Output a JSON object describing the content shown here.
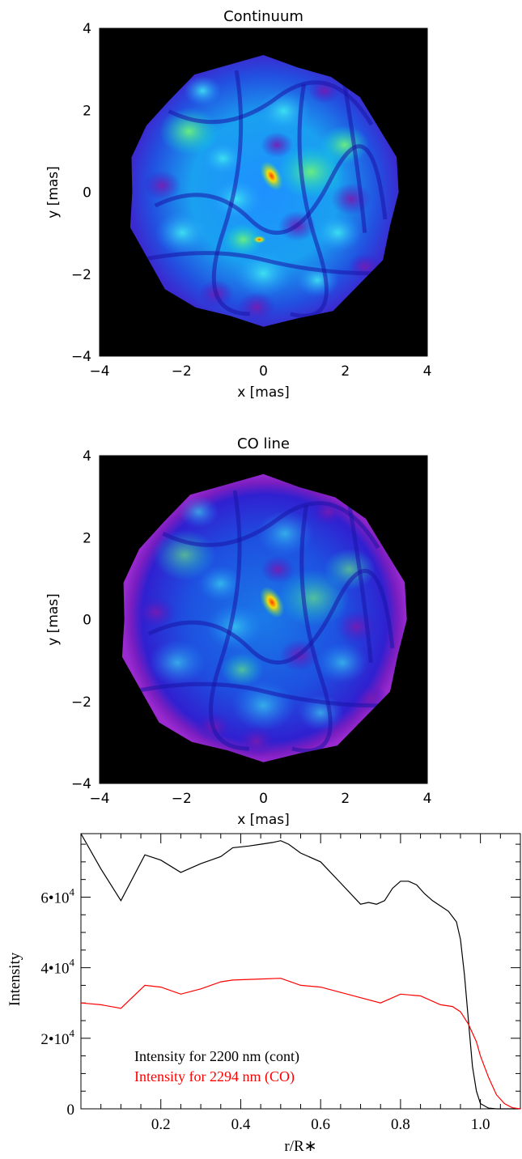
{
  "chart_data": [
    {
      "type": "heatmap",
      "title": "Continuum",
      "xlabel": "x [mas]",
      "ylabel": "y [mas]",
      "xlim": [
        -4,
        4
      ],
      "ylim": [
        -4,
        4
      ],
      "xticks": [
        "−4",
        "−2",
        "0",
        "2",
        "4"
      ],
      "yticks": [
        "4",
        "2",
        "0",
        "−2",
        "−4"
      ],
      "stellar_radius_mas": 3.3,
      "colormap": [
        "#000000",
        "#5a1a9c",
        "#1f1fd8",
        "#1e90ff",
        "#00e5e5",
        "#3fe07a",
        "#ffe000",
        "#ff3000"
      ]
    },
    {
      "type": "heatmap",
      "title": "CO line",
      "xlabel": "x [mas]",
      "ylabel": "y [mas]",
      "xlim": [
        -4,
        4
      ],
      "ylim": [
        -4,
        4
      ],
      "xticks": [
        "−4",
        "−2",
        "0",
        "2",
        "4"
      ],
      "yticks": [
        "4",
        "2",
        "0",
        "−2",
        "−4"
      ],
      "stellar_radius_mas": 3.5,
      "colormap": [
        "#000000",
        "#5a1a9c",
        "#1f1fd8",
        "#1e90ff",
        "#00e5e5",
        "#3fe07a",
        "#ffe000",
        "#ff3000"
      ]
    },
    {
      "type": "line",
      "xlabel": "r/R∗",
      "ylabel": "Intensity",
      "xlim": [
        0,
        1.1
      ],
      "ylim": [
        0,
        78000
      ],
      "xticks": [
        "0.2",
        "0.4",
        "0.6",
        "0.8",
        "1.0"
      ],
      "ytick_values": [
        0,
        20000,
        40000,
        60000
      ],
      "yticks": [
        {
          "mant": "0",
          "exp": ""
        },
        {
          "mant": "2•10",
          "exp": "4"
        },
        {
          "mant": "4•10",
          "exp": "4"
        },
        {
          "mant": "6•10",
          "exp": "4"
        }
      ],
      "series": [
        {
          "name": "Intensity for 2200 nm (cont)",
          "color": "#000000",
          "x": [
            0,
            0.05,
            0.1,
            0.16,
            0.2,
            0.25,
            0.3,
            0.35,
            0.38,
            0.42,
            0.45,
            0.48,
            0.5,
            0.52,
            0.55,
            0.6,
            0.65,
            0.7,
            0.72,
            0.74,
            0.76,
            0.78,
            0.8,
            0.82,
            0.84,
            0.86,
            0.88,
            0.9,
            0.92,
            0.94,
            0.95,
            0.96,
            0.97,
            0.98,
            0.99,
            1.0,
            1.02,
            1.04,
            1.06,
            1.1
          ],
          "y": [
            78000,
            68000,
            59000,
            72000,
            70500,
            67000,
            69500,
            71500,
            74000,
            74500,
            75000,
            75500,
            76000,
            75000,
            72500,
            70000,
            64000,
            58000,
            58500,
            58000,
            59000,
            62500,
            64500,
            64500,
            63500,
            61000,
            59000,
            57500,
            56000,
            53000,
            48000,
            38000,
            25000,
            12000,
            5000,
            1500,
            200,
            0,
            0,
            0
          ]
        },
        {
          "name": "Intensity for 2294 nm (CO)",
          "color": "#ff0000",
          "x": [
            0,
            0.05,
            0.1,
            0.16,
            0.2,
            0.25,
            0.3,
            0.35,
            0.38,
            0.45,
            0.5,
            0.55,
            0.6,
            0.7,
            0.75,
            0.8,
            0.85,
            0.9,
            0.93,
            0.95,
            0.97,
            0.99,
            1.0,
            1.02,
            1.04,
            1.06,
            1.08,
            1.1
          ],
          "y": [
            30000,
            29500,
            28500,
            35000,
            34500,
            32500,
            34000,
            36000,
            36500,
            36800,
            37000,
            35000,
            34500,
            31500,
            30000,
            32500,
            32000,
            29500,
            29000,
            27500,
            24000,
            19000,
            15000,
            9000,
            4000,
            1500,
            300,
            0
          ]
        }
      ]
    }
  ]
}
